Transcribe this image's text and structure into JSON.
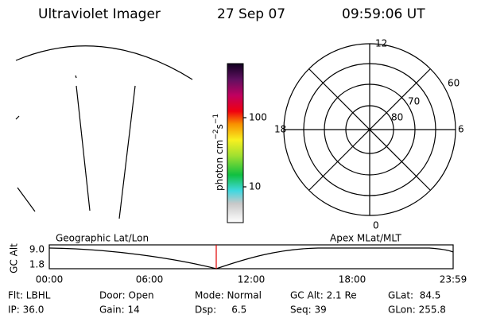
{
  "header": {
    "title": "Ultraviolet Imager",
    "date": "27 Sep 07",
    "time": "09:59:06 UT"
  },
  "colorbar": {
    "label": "photon cm",
    "exp1": "−2",
    "unit2": "s",
    "exp2": "−1",
    "ticks": [
      "100",
      "10"
    ]
  },
  "polar": {
    "mlt_labels": [
      "12",
      "0",
      "18",
      "6"
    ],
    "lat_labels": [
      "60",
      "70",
      "80"
    ]
  },
  "altitude_plot": {
    "axis_label": "GC Alt",
    "left_title": "Geographic Lat/Lon",
    "right_title": "Apex MLat/MLT",
    "y_labels": [
      "9.0",
      "1.8"
    ],
    "x_labels": [
      "00:00",
      "06:00",
      "12:00",
      "18:00",
      "23:59"
    ]
  },
  "footer": {
    "rows": [
      [
        "Flt: LBHL",
        "Door: Open",
        "Mode: Normal",
        "GC Alt: 2.1 Re",
        "GLat:  84.5"
      ],
      [
        "IP: 36.0",
        "Gain: 14",
        "Dsp:     6.5",
        "Seq: 39",
        "GLon: 255.8"
      ]
    ]
  }
}
